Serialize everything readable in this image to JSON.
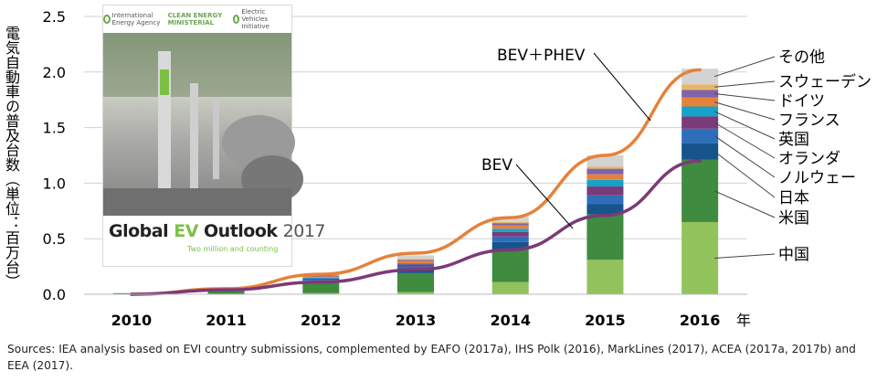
{
  "chart_data": {
    "type": "bar",
    "stacked": true,
    "categories": [
      "2010",
      "2011",
      "2012",
      "2013",
      "2014",
      "2015",
      "2016"
    ],
    "x_unit_label": "年",
    "ylabel": "電気自動車の普及台数（単位：百万台）",
    "ylim": [
      0,
      2.5
    ],
    "yticks": [
      "0.0",
      "0.5",
      "1.0",
      "1.5",
      "2.0",
      "2.5"
    ],
    "grid": true,
    "series": [
      {
        "name": "中国",
        "color": "#92c25c",
        "values": [
          0.0,
          0.0,
          0.01,
          0.02,
          0.11,
          0.31,
          0.65
        ]
      },
      {
        "name": "米国",
        "color": "#3f8b3f",
        "values": [
          0.01,
          0.03,
          0.09,
          0.17,
          0.29,
          0.41,
          0.56
        ]
      },
      {
        "name": "日本",
        "color": "#17548b",
        "values": [
          0.0,
          0.01,
          0.02,
          0.04,
          0.07,
          0.09,
          0.15
        ]
      },
      {
        "name": "ノルウェー",
        "color": "#2e6ebb",
        "values": [
          0.0,
          0.0,
          0.01,
          0.02,
          0.05,
          0.08,
          0.13
        ]
      },
      {
        "name": "オランダ",
        "color": "#7b3a78",
        "values": [
          0.0,
          0.0,
          0.01,
          0.02,
          0.04,
          0.08,
          0.11
        ]
      },
      {
        "name": "英国",
        "color": "#17a2c9",
        "values": [
          0.0,
          0.0,
          0.01,
          0.01,
          0.03,
          0.06,
          0.09
        ]
      },
      {
        "name": "フランス",
        "color": "#e5823a",
        "values": [
          0.0,
          0.0,
          0.01,
          0.02,
          0.03,
          0.05,
          0.08
        ]
      },
      {
        "name": "ドイツ",
        "color": "#8063a9",
        "values": [
          0.0,
          0.0,
          0.01,
          0.01,
          0.02,
          0.05,
          0.07
        ]
      },
      {
        "name": "スウェーデン",
        "color": "#e6b86a",
        "values": [
          0.0,
          0.0,
          0.0,
          0.01,
          0.01,
          0.02,
          0.05
        ]
      },
      {
        "name": "その他",
        "color": "#d3d3d3",
        "values": [
          0.0,
          0.0,
          0.01,
          0.03,
          0.05,
          0.1,
          0.14
        ]
      }
    ],
    "lines": [
      {
        "name": "BEV＋PHEV",
        "color": "#e5823a",
        "values": [
          0.0,
          0.05,
          0.18,
          0.37,
          0.69,
          1.25,
          2.02
        ]
      },
      {
        "name": "BEV",
        "color": "#7b3a78",
        "values": [
          0.0,
          0.04,
          0.11,
          0.22,
          0.4,
          0.71,
          1.2
        ]
      }
    ]
  },
  "y_axis_label": "電気自動車の普及台数（単位：百万台）",
  "cover": {
    "logo1": "International Energy Agency",
    "logo2": "CLEAN ENERGY MINISTERIAL",
    "logo3": "Electric Vehicles Initiative",
    "title_a": "Global ",
    "title_b": "EV",
    "title_c": " Outlook ",
    "title_d": "2017",
    "subtitle": "Two million and counting"
  },
  "sources": "Sources: IEA analysis based on EVI country submissions, complemented by EAFO (2017a), IHS Polk (2016), MarkLines (2017), ACEA (2017a, 2017b) and EEA (2017)."
}
